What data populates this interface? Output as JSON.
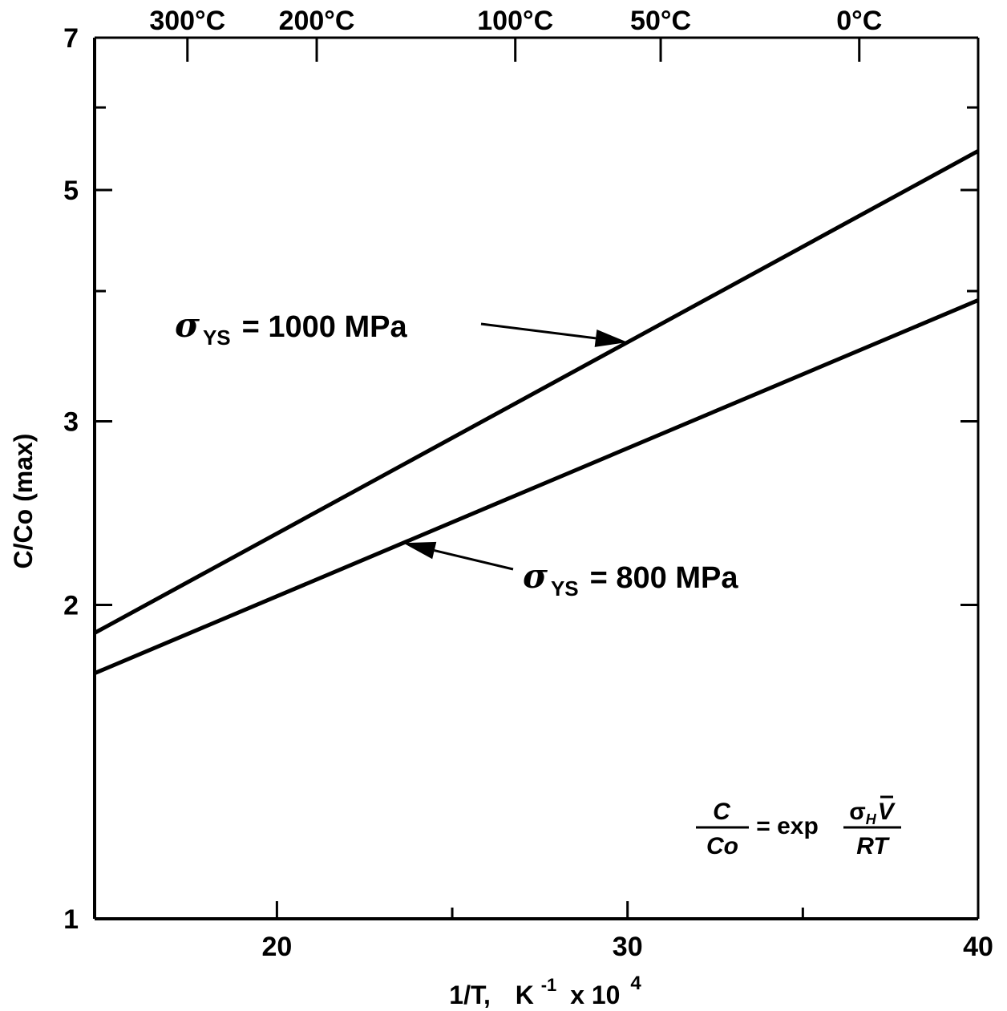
{
  "chart_data": {
    "type": "line",
    "x_scale": "linear",
    "y_scale": "log",
    "xlim": [
      14.8,
      40
    ],
    "ylim": [
      1,
      7
    ],
    "xlabel_main": "1/T,",
    "xlabel_unit": "K",
    "xlabel_exp": "-1",
    "xlabel_mult": "x 10",
    "xlabel_pow": "4",
    "ylabel": "C/Co  (max)",
    "x_ticks": [
      {
        "value": 20,
        "label": "20"
      },
      {
        "value": 30,
        "label": "30"
      },
      {
        "value": 40,
        "label": "40"
      }
    ],
    "x_minor_ticks": [
      25,
      35
    ],
    "y_ticks": [
      {
        "value": 1,
        "label": "1"
      },
      {
        "value": 2,
        "label": "2"
      },
      {
        "value": 3,
        "label": "3"
      },
      {
        "value": 5,
        "label": "5"
      },
      {
        "value": 7,
        "label": "7"
      }
    ],
    "y_minor_ticks": [
      4,
      6
    ],
    "top_axis": [
      {
        "celsius": 300,
        "label": "300°C"
      },
      {
        "celsius": 200,
        "label": "200°C"
      },
      {
        "celsius": 100,
        "label": "100°C"
      },
      {
        "celsius": 50,
        "label": "50°C"
      },
      {
        "celsius": 0,
        "label": "0°C"
      }
    ],
    "series": [
      {
        "x": [
          14.8,
          40
        ],
        "y": [
          1.88,
          5.45
        ],
        "annotation": {
          "symbol": "σ",
          "subscript": "YS",
          "text": "= 1000 MPa",
          "arrow_to_x": 30.0
        }
      },
      {
        "x": [
          14.8,
          40
        ],
        "y": [
          1.72,
          3.92
        ],
        "annotation": {
          "symbol": "σ",
          "subscript": "YS",
          "text": "= 800 MPa",
          "arrow_to_x": 23.6
        }
      }
    ],
    "formula": {
      "lhs_num": "C",
      "lhs_den": "Co",
      "eq": "= exp",
      "rhs_num_sym": "σ",
      "rhs_num_sub": "H",
      "rhs_num_var": "V",
      "rhs_den": "RT"
    }
  }
}
